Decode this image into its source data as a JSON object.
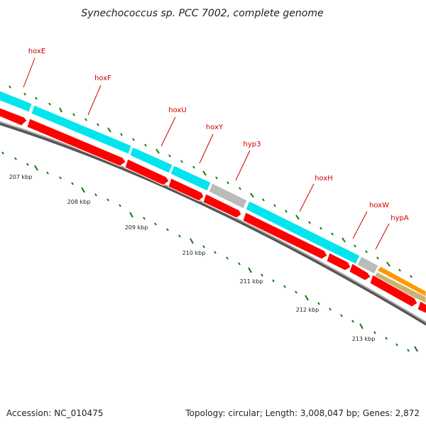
{
  "title": "Synechococcus sp. PCC 7002, complete genome",
  "footer": {
    "accession": "Accession: NC_010475",
    "summary": "Topology: circular; Length: 3,008,047 bp; Genes: 2,872"
  },
  "colors": {
    "cds_forward": "#00e5ee",
    "cds_reverse": "#ff0000",
    "gene_other": "#bbbbbb",
    "gene_orange": "#ff9900",
    "gene_khaki": "#c8b46e",
    "backbone": "#888888",
    "tick": "#117711",
    "label": "#cc0000"
  },
  "gene_labels": [
    {
      "name": "hoxE"
    },
    {
      "name": "hoxF"
    },
    {
      "name": "hoxU"
    },
    {
      "name": "hoxY"
    },
    {
      "name": "hyp3"
    },
    {
      "name": "hoxH"
    },
    {
      "name": "hoxW"
    },
    {
      "name": "hypA"
    }
  ],
  "kbp_labels": [
    "207 kbp",
    "208 kbp",
    "209 kbp",
    "210 kbp",
    "211 kbp",
    "212 kbp",
    "213 kbp"
  ]
}
